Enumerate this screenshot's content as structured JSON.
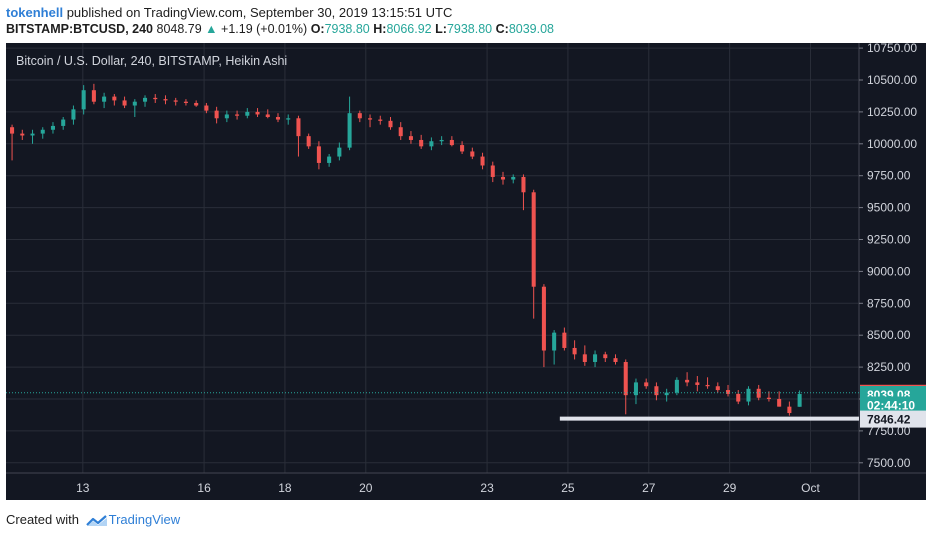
{
  "header": {
    "user": "tokenhell",
    "published_text": " published on TradingView.com, September 30, 2019 13:15:51 UTC",
    "symbol": "BITSTAMP:BTCUSD, 240",
    "last": "8048.79",
    "change": "+1.19 (+0.01%)",
    "o_label": "O:",
    "o_value": "7938.80",
    "h_label": "H:",
    "h_value": "8066.92",
    "l_label": "L:",
    "l_value": "7938.80",
    "c_label": "C:",
    "c_value": "8039.08"
  },
  "colors": {
    "background": "#131722",
    "up": "#26a69a",
    "down": "#ef5350",
    "grid": "#2a2e39",
    "axis_text": "#d1d4dc",
    "support_line": "#e0e3eb"
  },
  "chart_data": {
    "type": "candlestick",
    "title": "Bitcoin / U.S. Dollar, 240, BITSTAMP, Heikin Ashi",
    "ylim": [
      7420,
      10790
    ],
    "y_ticks": [
      "10750.00",
      "10500.00",
      "10250.00",
      "10000.00",
      "9750.00",
      "9500.00",
      "9250.00",
      "9000.00",
      "8750.00",
      "8500.00",
      "8250.00",
      "8000.00",
      "7750.00",
      "7500.00"
    ],
    "y_tick_values": [
      10750,
      10500,
      10250,
      10000,
      9750,
      9500,
      9250,
      9000,
      8750,
      8500,
      8250,
      8000,
      7750,
      7500
    ],
    "x_ticks": [
      "13",
      "16",
      "18",
      "20",
      "23",
      "25",
      "27",
      "29",
      "Oct"
    ],
    "x_tick_positions": [
      13,
      16,
      18,
      20,
      23,
      25,
      27,
      29,
      31
    ],
    "x_start": 11.1,
    "x_end": 32.2,
    "candle_spacing_days": 0.1667,
    "candles": [
      [
        10130,
        10150,
        9870,
        10080
      ],
      [
        10080,
        10110,
        10030,
        10065
      ],
      [
        10065,
        10110,
        10000,
        10080
      ],
      [
        10080,
        10130,
        10040,
        10110
      ],
      [
        10110,
        10170,
        10080,
        10140
      ],
      [
        10140,
        10210,
        10110,
        10190
      ],
      [
        10190,
        10300,
        10150,
        10270
      ],
      [
        10270,
        10460,
        10230,
        10420
      ],
      [
        10420,
        10470,
        10310,
        10330
      ],
      [
        10330,
        10400,
        10280,
        10370
      ],
      [
        10370,
        10390,
        10300,
        10340
      ],
      [
        10340,
        10370,
        10280,
        10300
      ],
      [
        10300,
        10350,
        10210,
        10330
      ],
      [
        10330,
        10380,
        10290,
        10360
      ],
      [
        10360,
        10390,
        10320,
        10350
      ],
      [
        10350,
        10380,
        10310,
        10340
      ],
      [
        10340,
        10360,
        10300,
        10330
      ],
      [
        10330,
        10350,
        10300,
        10320
      ],
      [
        10320,
        10340,
        10290,
        10300
      ],
      [
        10300,
        10320,
        10240,
        10260
      ],
      [
        10260,
        10290,
        10160,
        10200
      ],
      [
        10200,
        10260,
        10170,
        10230
      ],
      [
        10230,
        10260,
        10190,
        10220
      ],
      [
        10220,
        10280,
        10200,
        10250
      ],
      [
        10250,
        10280,
        10210,
        10230
      ],
      [
        10230,
        10270,
        10200,
        10210
      ],
      [
        10210,
        10240,
        10170,
        10190
      ],
      [
        10190,
        10230,
        10150,
        10200
      ],
      [
        10200,
        10220,
        9900,
        10060
      ],
      [
        10060,
        10080,
        9960,
        9980
      ],
      [
        9980,
        10020,
        9800,
        9850
      ],
      [
        9850,
        9920,
        9820,
        9900
      ],
      [
        9900,
        10010,
        9870,
        9970
      ],
      [
        9970,
        10370,
        9950,
        10240
      ],
      [
        10240,
        10260,
        10170,
        10200
      ],
      [
        10200,
        10230,
        10130,
        10190
      ],
      [
        10190,
        10220,
        10150,
        10180
      ],
      [
        10180,
        10210,
        10110,
        10130
      ],
      [
        10130,
        10170,
        10030,
        10060
      ],
      [
        10060,
        10100,
        10000,
        10030
      ],
      [
        10030,
        10070,
        9960,
        9980
      ],
      [
        9980,
        10050,
        9950,
        10020
      ],
      [
        10020,
        10060,
        9990,
        10030
      ],
      [
        10030,
        10060,
        9980,
        9990
      ],
      [
        9990,
        10020,
        9920,
        9940
      ],
      [
        9940,
        9970,
        9880,
        9900
      ],
      [
        9900,
        9930,
        9800,
        9830
      ],
      [
        9830,
        9860,
        9700,
        9740
      ],
      [
        9740,
        9780,
        9680,
        9720
      ],
      [
        9720,
        9760,
        9690,
        9740
      ],
      [
        9740,
        9760,
        9480,
        9620
      ],
      [
        9620,
        9640,
        8630,
        8880
      ],
      [
        8880,
        8900,
        8250,
        8380
      ],
      [
        8380,
        8540,
        8270,
        8520
      ],
      [
        8520,
        8560,
        8380,
        8400
      ],
      [
        8400,
        8460,
        8310,
        8350
      ],
      [
        8350,
        8420,
        8260,
        8290
      ],
      [
        8290,
        8380,
        8250,
        8350
      ],
      [
        8350,
        8370,
        8290,
        8320
      ],
      [
        8320,
        8350,
        8270,
        8290
      ],
      [
        8290,
        8310,
        7880,
        8030
      ],
      [
        8030,
        8160,
        7960,
        8130
      ],
      [
        8130,
        8160,
        8080,
        8100
      ],
      [
        8100,
        8130,
        7990,
        8030
      ],
      [
        8030,
        8080,
        7980,
        8050
      ],
      [
        8050,
        8170,
        8030,
        8150
      ],
      [
        8150,
        8210,
        8100,
        8130
      ],
      [
        8130,
        8180,
        8060,
        8110
      ],
      [
        8110,
        8170,
        8080,
        8100
      ],
      [
        8100,
        8130,
        8050,
        8070
      ],
      [
        8070,
        8110,
        8020,
        8040
      ],
      [
        8040,
        8070,
        7960,
        7980
      ],
      [
        7980,
        8100,
        7950,
        8080
      ],
      [
        8080,
        8110,
        7990,
        8010
      ],
      [
        8010,
        8060,
        7980,
        8000
      ],
      [
        8000,
        8060,
        7940,
        7940
      ],
      [
        7940,
        7980,
        7870,
        7890
      ],
      [
        7939,
        8067,
        7939,
        8039
      ]
    ],
    "last_price_label": "8048.79",
    "last_price": 8048.79,
    "price_label": "8039.08",
    "price_label_value": 8039.08,
    "countdown_label": "02:44:10",
    "countdown_value": 7957,
    "support_label": "7846.42",
    "support_price": 7846.42,
    "support_range": [
      24.8,
      32.2
    ]
  },
  "footer": {
    "created_with": "Created with",
    "brand": "TradingView"
  }
}
